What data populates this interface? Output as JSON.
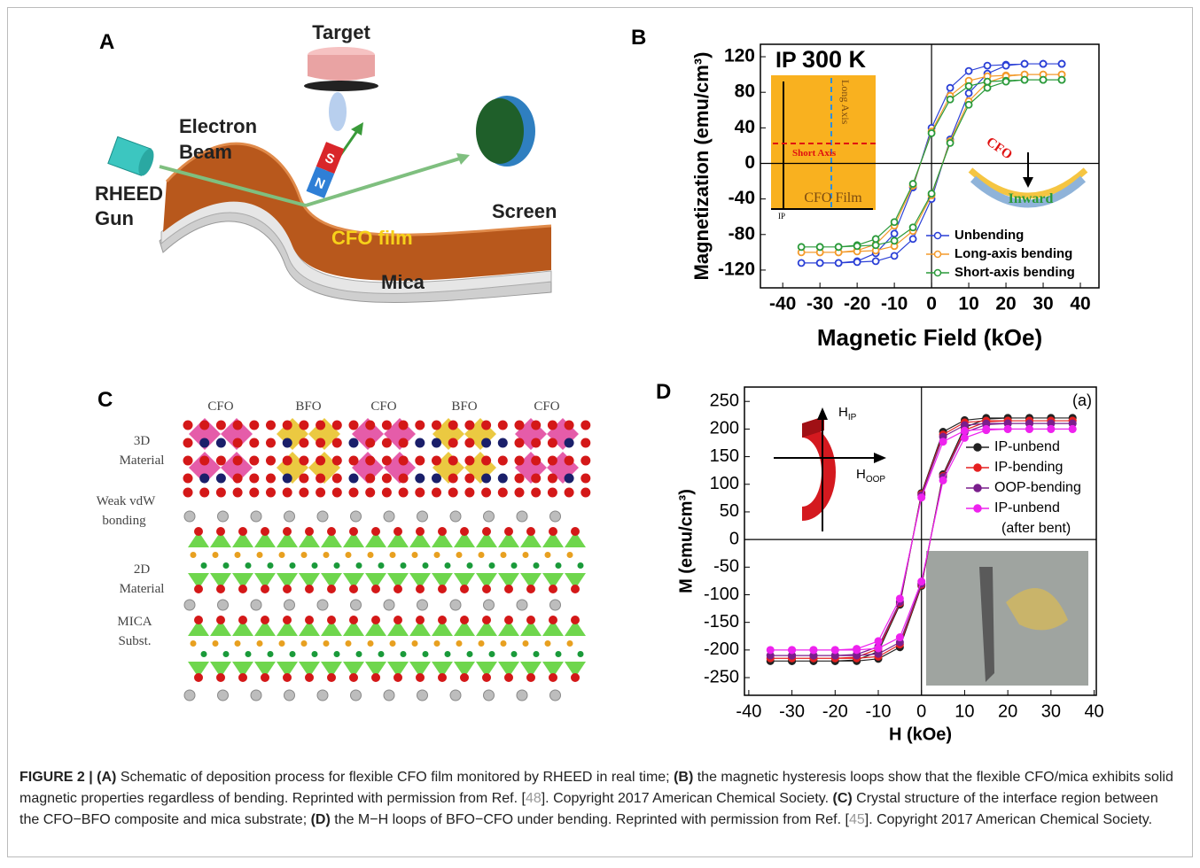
{
  "panels": {
    "A": {
      "label": "A",
      "target": "Target",
      "electron_beam": [
        "Electron",
        "Beam"
      ],
      "rheed_gun": [
        "RHEED",
        "Gun"
      ],
      "screen": "Screen",
      "film": "CFO film",
      "substrate": "Mica",
      "magnet": [
        "S",
        "N"
      ]
    },
    "C": {
      "label": "C",
      "columns": [
        "CFO",
        "BFO",
        "CFO",
        "BFO",
        "CFO"
      ],
      "layers": [
        [
          "3D",
          "Material"
        ],
        [
          "Weak vdW",
          "bonding"
        ],
        [
          "2D",
          "Material"
        ],
        [
          "MICA",
          "Subst."
        ]
      ]
    }
  },
  "chart_data": [
    {
      "type": "line",
      "panel_label": "B",
      "annotations": {
        "mode": "IP",
        "temperature": "300 K",
        "inset": {
          "long_axis": "Long Axis",
          "short_axis": "Short Axis",
          "film": "CFO Film",
          "direction": "IP"
        },
        "bend": {
          "film": "CFO",
          "direction": "Inward"
        }
      },
      "xlabel": "Magnetic Field (kOe)",
      "ylabel": "Magnetization (emu/cm³)",
      "x": [
        35,
        30,
        25,
        20,
        15,
        10,
        5,
        0,
        -5,
        -10,
        -15,
        -20,
        -25,
        -30,
        -35,
        -30,
        -25,
        -20,
        -15,
        -10,
        -5,
        0,
        5,
        10,
        15,
        20,
        25,
        30,
        35
      ],
      "series": [
        {
          "name": "Unbending",
          "color": "#2a3fd6",
          "values": [
            112,
            112,
            112,
            111,
            110,
            104,
            85,
            40,
            -27,
            -79,
            -101,
            -110,
            -112,
            -112,
            -112,
            -112,
            -112,
            -111,
            -110,
            -104,
            -85,
            -40,
            27,
            79,
            101,
            110,
            112,
            112,
            112
          ]
        },
        {
          "name": "Long-axis bending",
          "color": "#f39a2b",
          "values": [
            100,
            100,
            100,
            99,
            98,
            93,
            76,
            36,
            -25,
            -70,
            -91,
            -98,
            -100,
            -100,
            -100,
            -100,
            -100,
            -99,
            -98,
            -93,
            -76,
            -36,
            25,
            70,
            91,
            98,
            100,
            100,
            100
          ]
        },
        {
          "name": "Short-axis bending",
          "color": "#2a9a3a",
          "values": [
            94,
            94,
            94,
            93,
            92,
            87,
            72,
            34,
            -23,
            -66,
            -85,
            -92,
            -94,
            -94,
            -94,
            -94,
            -94,
            -93,
            -92,
            -87,
            -72,
            -34,
            23,
            66,
            85,
            92,
            94,
            94,
            94
          ]
        }
      ],
      "xlim": [
        -46,
        45
      ],
      "ylim": [
        -140,
        134
      ],
      "xticks": [
        -40,
        -30,
        -20,
        -10,
        0,
        10,
        20,
        30,
        40
      ],
      "yticks": [
        -120,
        -80,
        -40,
        0,
        40,
        80,
        120
      ],
      "zero_lines": true,
      "legend": "lower right"
    },
    {
      "type": "line",
      "panel_label": "D",
      "annotations": {
        "tag": "(a)",
        "ip": {
          "symbol": "H",
          "subscript": "IP"
        },
        "oop": {
          "symbol": "H",
          "subscript": "OOP"
        }
      },
      "xlabel": "H (kOe)",
      "ylabel": "M (emu/cm³)",
      "x": [
        35,
        30,
        25,
        20,
        15,
        10,
        5,
        0,
        -5,
        -10,
        -15,
        -20,
        -25,
        -30,
        -35,
        -30,
        -25,
        -20,
        -15,
        -10,
        -5,
        0,
        5,
        10,
        15,
        20,
        25,
        30,
        35
      ],
      "series": [
        {
          "name": "IP-unbend",
          "color": "#222222",
          "values": [
            220,
            220,
            220,
            220,
            220,
            216,
            195,
            84,
            -118,
            -203,
            -218,
            -220,
            -220,
            -220,
            -220,
            -220,
            -220,
            -220,
            -220,
            -216,
            -195,
            -84,
            118,
            203,
            218,
            220,
            220,
            220,
            220
          ]
        },
        {
          "name": "IP-bending",
          "color": "#e52020",
          "values": [
            215,
            215,
            215,
            215,
            215,
            212,
            190,
            82,
            -115,
            -198,
            -213,
            -215,
            -215,
            -215,
            -215,
            -215,
            -215,
            -215,
            -215,
            -212,
            -190,
            -82,
            115,
            198,
            213,
            215,
            215,
            215,
            215
          ]
        },
        {
          "name": "OOP-bending",
          "color": "#7a1f8c",
          "values": [
            210,
            210,
            210,
            210,
            210,
            207,
            186,
            80,
            -113,
            -194,
            -208,
            -210,
            -210,
            -210,
            -210,
            -210,
            -210,
            -210,
            -210,
            -207,
            -186,
            -80,
            113,
            194,
            208,
            210,
            210,
            210,
            210
          ]
        },
        {
          "name": "IP-unbend (after bent)",
          "color": "#ee22ee",
          "values": [
            200,
            200,
            200,
            200,
            200,
            197,
            177,
            76,
            -107,
            -184,
            -198,
            -200,
            -200,
            -200,
            -200,
            -200,
            -200,
            -200,
            -200,
            -197,
            -177,
            -76,
            107,
            184,
            198,
            200,
            200,
            200,
            200
          ]
        }
      ],
      "xlim": [
        -41,
        40.5
      ],
      "ylim": [
        -282,
        276
      ],
      "xticks": [
        -40,
        -30,
        -20,
        -10,
        0,
        10,
        20,
        30,
        40
      ],
      "yticks": [
        -250,
        -200,
        -150,
        -100,
        -50,
        0,
        50,
        100,
        150,
        200,
        250
      ],
      "zero_lines": true,
      "legend": "upper right"
    }
  ],
  "caption": [
    {
      "text": "FIGURE 2 | (A)",
      "style": "bold"
    },
    {
      "text": " Schematic of deposition process for flexible CFO film monitored by RHEED in real time; ",
      "style": "plain"
    },
    {
      "text": "(B)",
      "style": "bold"
    },
    {
      "text": " the magnetic hysteresis loops show that the flexible CFO/mica exhibits solid magnetic properties regardless of bending. Reprinted with permission from Ref. [",
      "style": "plain"
    },
    {
      "text": "48",
      "style": "ref"
    },
    {
      "text": "]. Copyright 2017 American Chemical Society. ",
      "style": "plain"
    },
    {
      "text": "(C)",
      "style": "bold"
    },
    {
      "text": " Crystal structure of the interface region between the CFO−BFO composite and mica substrate; ",
      "style": "plain"
    },
    {
      "text": "(D)",
      "style": "bold"
    },
    {
      "text": " the M−H loops of BFO−CFO under bending. Reprinted with permission from Ref. [",
      "style": "plain"
    },
    {
      "text": "45",
      "style": "ref"
    },
    {
      "text": "]. Copyright 2017 American Chemical Society.",
      "style": "plain"
    }
  ]
}
